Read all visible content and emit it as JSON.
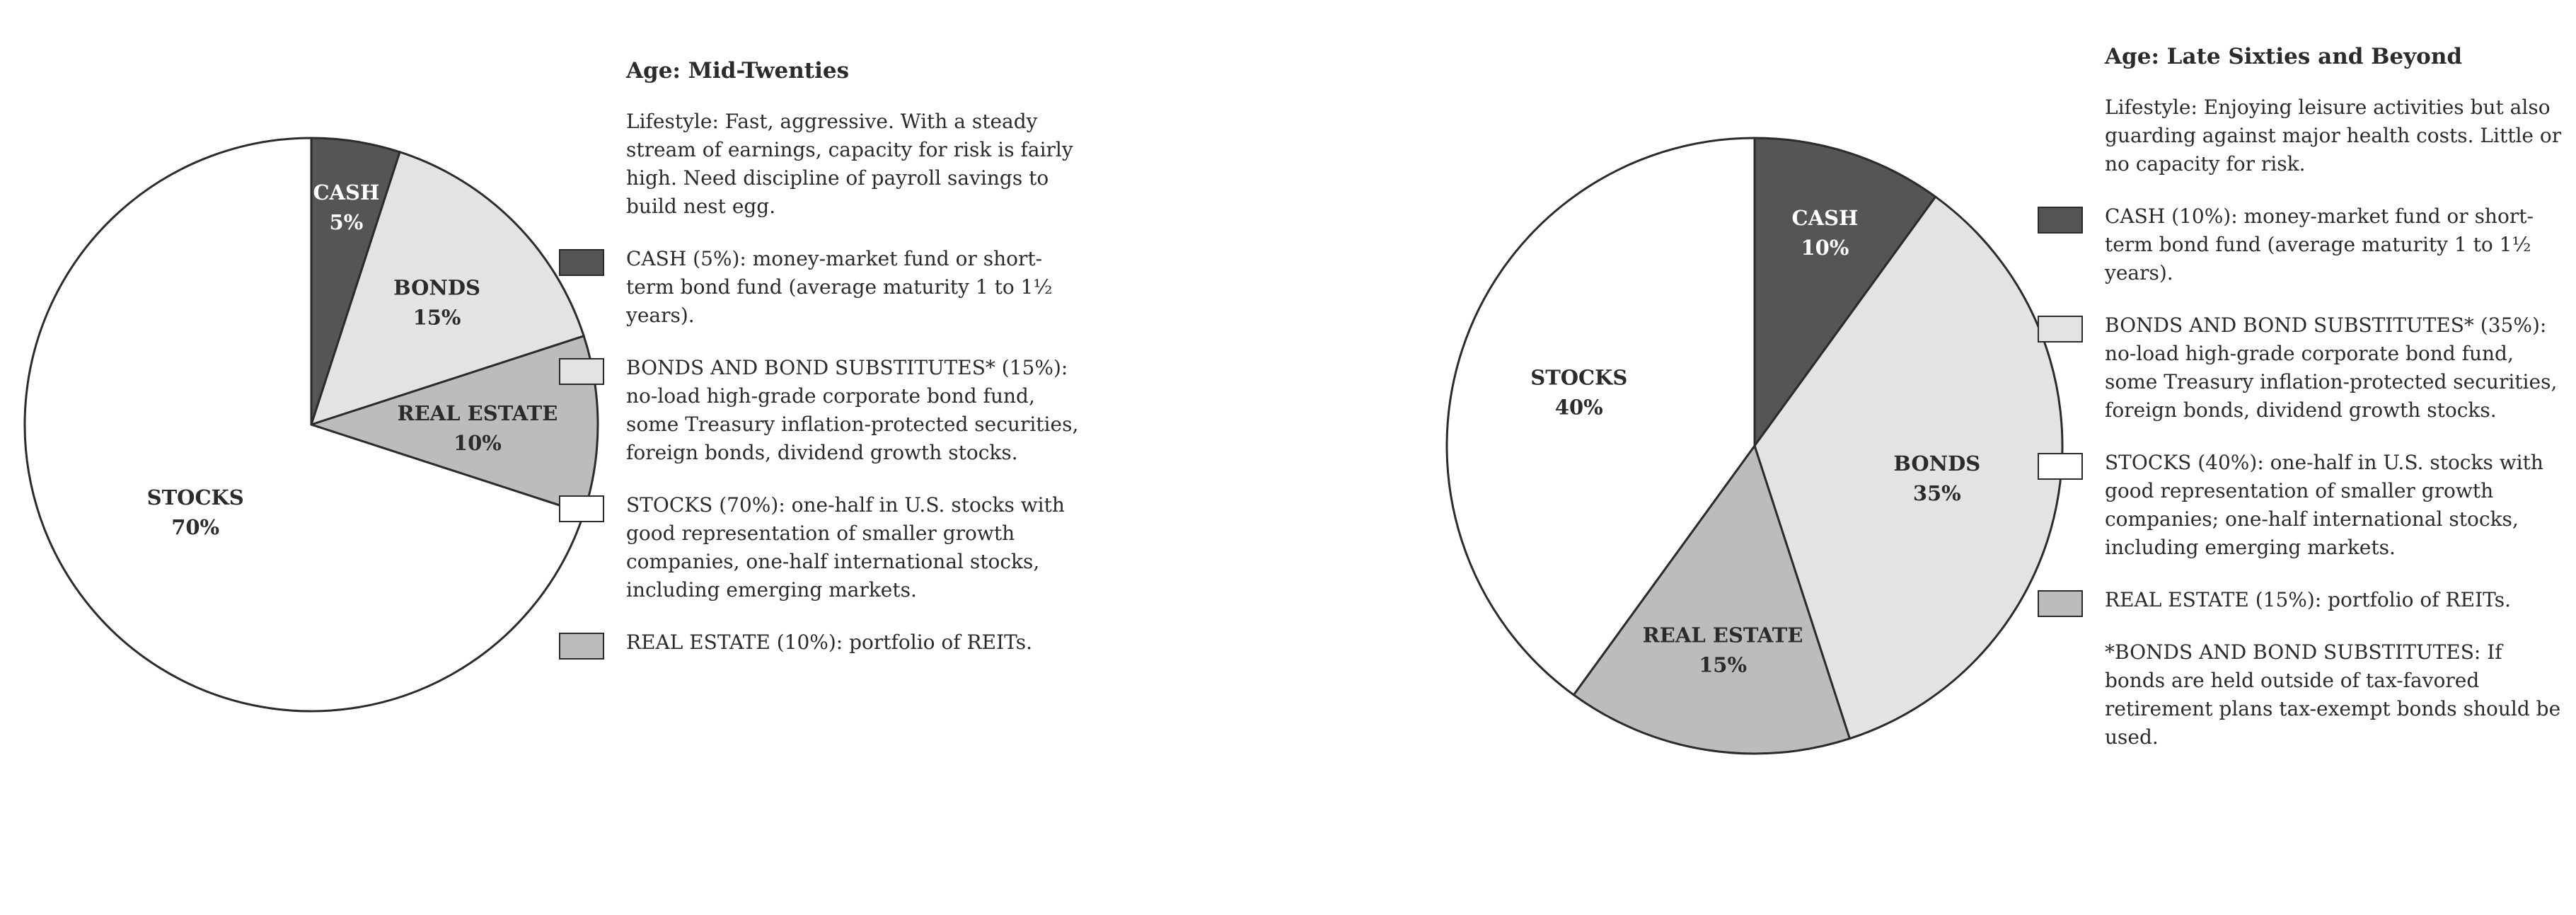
{
  "colors": {
    "cash": "#555555",
    "bonds": "#e3e3e3",
    "real_estate": "#bcbcbc",
    "stocks": "#ffffff",
    "label_dark_bg": "#ffffff",
    "label_light_bg": "#2b2b2b"
  },
  "chart_data": [
    {
      "type": "pie",
      "title": "",
      "slices": [
        {
          "name": "CASH",
          "value": 5,
          "label": "5%",
          "color_key": "cash"
        },
        {
          "name": "BONDS",
          "value": 15,
          "label": "15%",
          "color_key": "bonds"
        },
        {
          "name": "REAL ESTATE",
          "value": 10,
          "label": "10%",
          "color_key": "real_estate"
        },
        {
          "name": "STOCKS",
          "value": 70,
          "label": "70%",
          "color_key": "stocks"
        }
      ]
    },
    {
      "type": "pie",
      "title": "",
      "slices": [
        {
          "name": "CASH",
          "value": 10,
          "label": "10%",
          "color_key": "cash"
        },
        {
          "name": "BONDS",
          "value": 35,
          "label": "35%",
          "color_key": "bonds"
        },
        {
          "name": "REAL ESTATE",
          "value": 15,
          "label": "15%",
          "color_key": "real_estate"
        },
        {
          "name": "STOCKS",
          "value": 40,
          "label": "40%",
          "color_key": "stocks"
        }
      ]
    }
  ],
  "panels": [
    {
      "age": "Age: Mid-Twenties",
      "lifestyle": "Lifestyle: Fast, aggressive. With a steady stream of earnings, capacity for risk is fairly high. Need discipline of payroll savings to build nest egg.",
      "legend": [
        {
          "color_key": "cash",
          "text": "CASH (5%): money-market fund or short-term bond fund (average maturity 1 to 1½ years)."
        },
        {
          "color_key": "bonds",
          "text": "BONDS AND BOND SUBSTITUTES* (15%): no-load high-grade corporate bond fund, some Treasury inflation-protected securities, foreign bonds, dividend growth stocks."
        },
        {
          "color_key": "stocks",
          "text": "STOCKS (70%): one-half in U.S. stocks with good representation of smaller growth companies, one-half international stocks, including emerging markets."
        },
        {
          "color_key": "real_estate",
          "text": "REAL ESTATE (10%): portfolio of REITs."
        }
      ]
    },
    {
      "age": "Age: Late Sixties and Beyond",
      "lifestyle": "Lifestyle: Enjoying leisure activities but also guarding against major health costs. Little or no capacity for risk.",
      "legend": [
        {
          "color_key": "cash",
          "text": "CASH (10%): money-market fund or short-term bond fund (average maturity 1 to 1½ years)."
        },
        {
          "color_key": "bonds",
          "text": "BONDS AND BOND SUBSTITUTES* (35%): no-load high-grade corporate bond fund, some Treasury inflation-protected securities, foreign bonds, dividend growth stocks."
        },
        {
          "color_key": "stocks",
          "text": "STOCKS (40%): one-half in U.S. stocks with good representation of smaller growth companies; one-half international stocks, including emerging markets."
        },
        {
          "color_key": "real_estate",
          "text": "REAL ESTATE (15%): portfolio of REITs."
        }
      ],
      "footnote": "*BONDS AND BOND SUBSTITUTES: If bonds are held outside of tax-favored retirement plans tax-exempt bonds should be used."
    }
  ]
}
